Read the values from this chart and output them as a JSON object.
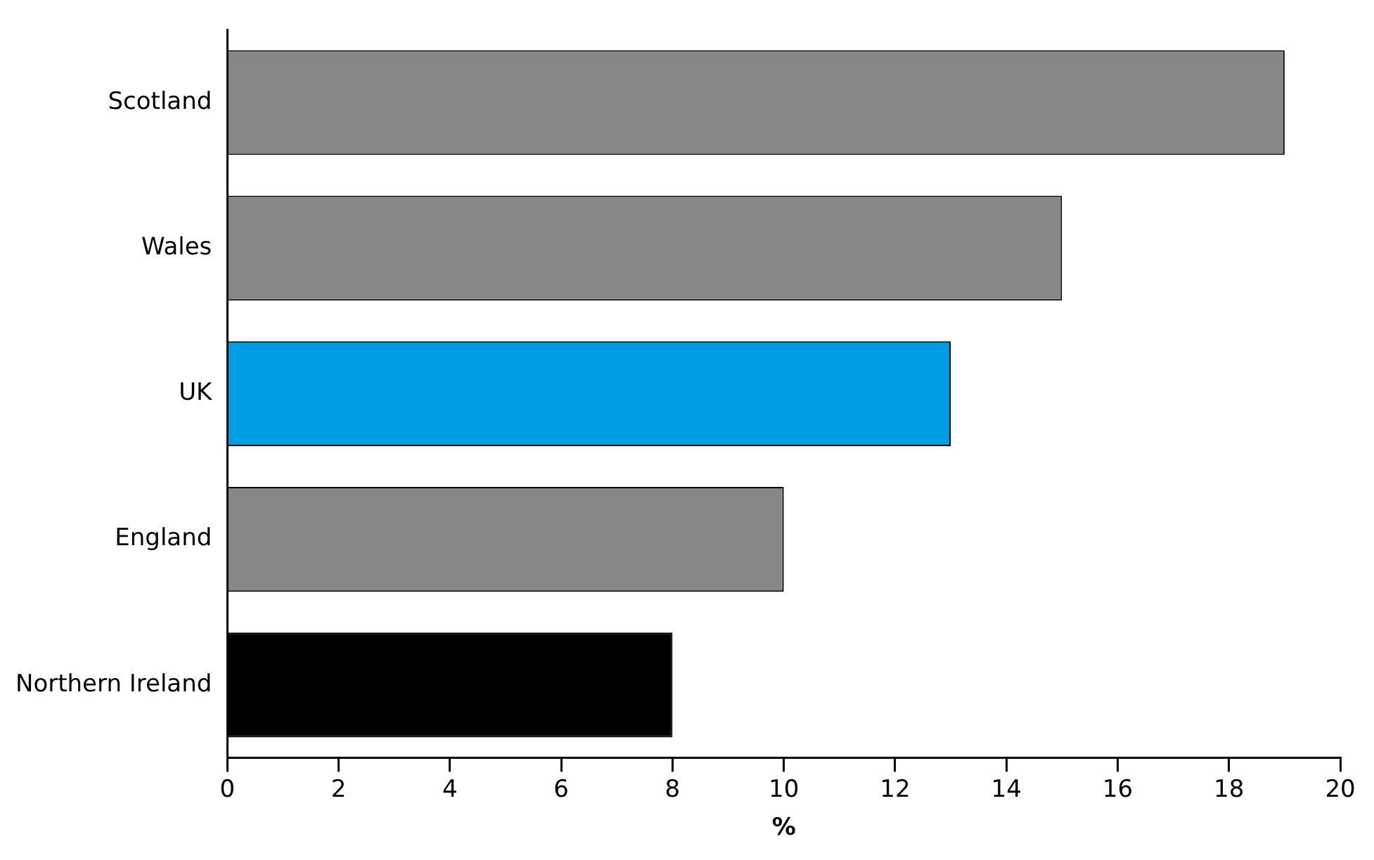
{
  "chart_data": {
    "type": "bar",
    "orientation": "horizontal",
    "xlabel": "%",
    "categories": [
      "Scotland",
      "Wales",
      "UK",
      "England",
      "Northern Ireland"
    ],
    "values": [
      19,
      15,
      13,
      10,
      8
    ],
    "colors": [
      "#878787",
      "#878787",
      "#009fe3",
      "#878787",
      "#000000"
    ],
    "xlim": [
      0,
      20
    ],
    "xticks": [
      0,
      2,
      4,
      6,
      8,
      10,
      12,
      14,
      16,
      18,
      20
    ],
    "grid": false,
    "legend": false
  }
}
